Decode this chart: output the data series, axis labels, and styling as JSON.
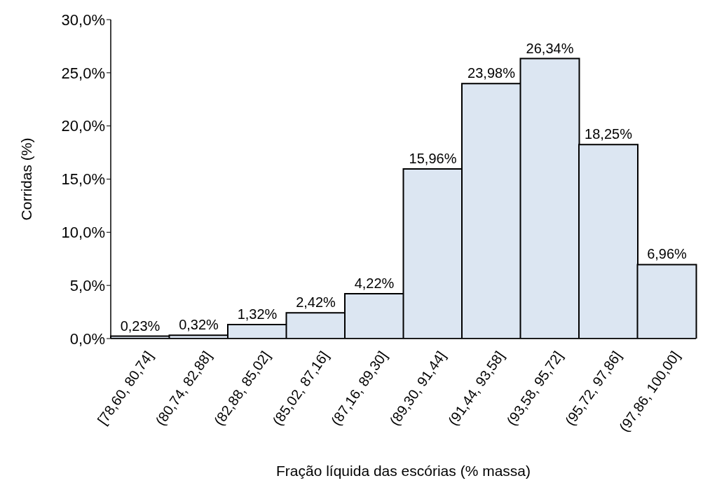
{
  "chart_data": {
    "type": "bar",
    "xlabel": "Fração líquida das escórias (% massa)",
    "ylabel": "Corridas (%)",
    "categories": [
      "[78,60, 80,74]",
      "(80,74, 82,88]",
      "(82,88, 85,02]",
      "(85,02, 87,16]",
      "(87,16, 89,30]",
      "(89,30, 91,44]",
      "(91,44, 93,58]",
      "(93,58, 95,72]",
      "(95,72, 97,86]",
      "(97,86, 100,00]"
    ],
    "values": [
      0.23,
      0.32,
      1.32,
      2.42,
      4.22,
      15.96,
      23.98,
      26.34,
      18.25,
      6.96
    ],
    "value_labels": [
      "0,23%",
      "0,32%",
      "1,32%",
      "2,42%",
      "4,22%",
      "15,96%",
      "23,98%",
      "26,34%",
      "18,25%",
      "6,96%"
    ],
    "color": "#dce6f2",
    "ylim": [
      0,
      30
    ],
    "yticks": [
      {
        "value": 0,
        "label": "0,0%"
      },
      {
        "value": 5,
        "label": "5,0%"
      },
      {
        "value": 10,
        "label": "10,0%"
      },
      {
        "value": 15,
        "label": "15,0%"
      },
      {
        "value": 20,
        "label": "20,0%"
      },
      {
        "value": 25,
        "label": "25,0%"
      },
      {
        "value": 30,
        "label": "30,0%"
      }
    ],
    "grid": false,
    "legend": false
  }
}
